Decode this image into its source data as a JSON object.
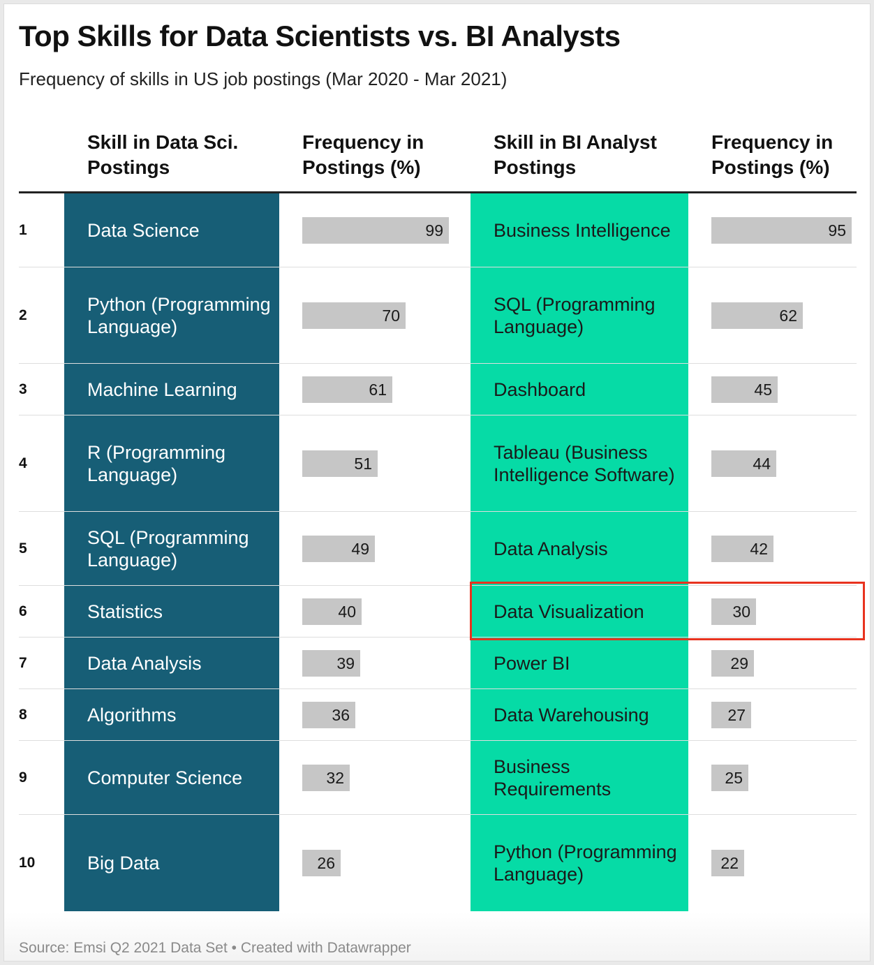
{
  "title": "Top Skills for Data Scientists vs. BI Analysts",
  "subtitle": "Frequency of skills in US job postings (Mar 2020 - Mar 2021)",
  "headers": {
    "ds_skill": "Skill in Data Sci. Postings",
    "ds_freq": "Frequency in Postings (%)",
    "bi_skill": "Skill in BI Analyst Postings",
    "bi_freq": "Frequency in Postings (%)"
  },
  "colors": {
    "ds_column": "#175e76",
    "bi_column": "#06dba6",
    "bar": "#c6c6c6",
    "highlight": "#e8331f"
  },
  "highlighted_rank": 6,
  "source": "Source: Emsi Q2 2021 Data Set • Created with Datawrapper",
  "chart_data": {
    "type": "table",
    "max_value": 100,
    "rows": [
      {
        "rank": "1",
        "ds_skill": "Data Science",
        "ds_freq": 99,
        "bi_skill": "Business Intelligence",
        "bi_freq": 95
      },
      {
        "rank": "2",
        "ds_skill": "Python (Programming Language)",
        "ds_freq": 70,
        "bi_skill": "SQL (Programming Language)",
        "bi_freq": 62
      },
      {
        "rank": "3",
        "ds_skill": "Machine Learning",
        "ds_freq": 61,
        "bi_skill": "Dashboard",
        "bi_freq": 45
      },
      {
        "rank": "4",
        "ds_skill": "R (Programming Language)",
        "ds_freq": 51,
        "bi_skill": "Tableau (Business Intelligence Software)",
        "bi_freq": 44
      },
      {
        "rank": "5",
        "ds_skill": "SQL (Programming Language)",
        "ds_freq": 49,
        "bi_skill": "Data Analysis",
        "bi_freq": 42
      },
      {
        "rank": "6",
        "ds_skill": "Statistics",
        "ds_freq": 40,
        "bi_skill": "Data Visualization",
        "bi_freq": 30
      },
      {
        "rank": "7",
        "ds_skill": "Data Analysis",
        "ds_freq": 39,
        "bi_skill": "Power BI",
        "bi_freq": 29
      },
      {
        "rank": "8",
        "ds_skill": "Algorithms",
        "ds_freq": 36,
        "bi_skill": "Data Warehousing",
        "bi_freq": 27
      },
      {
        "rank": "9",
        "ds_skill": "Computer Science",
        "ds_freq": 32,
        "bi_skill": "Business Requirements",
        "bi_freq": 25
      },
      {
        "rank": "10",
        "ds_skill": "Big Data",
        "ds_freq": 26,
        "bi_skill": "Python (Programming Language)",
        "bi_freq": 22
      }
    ]
  }
}
